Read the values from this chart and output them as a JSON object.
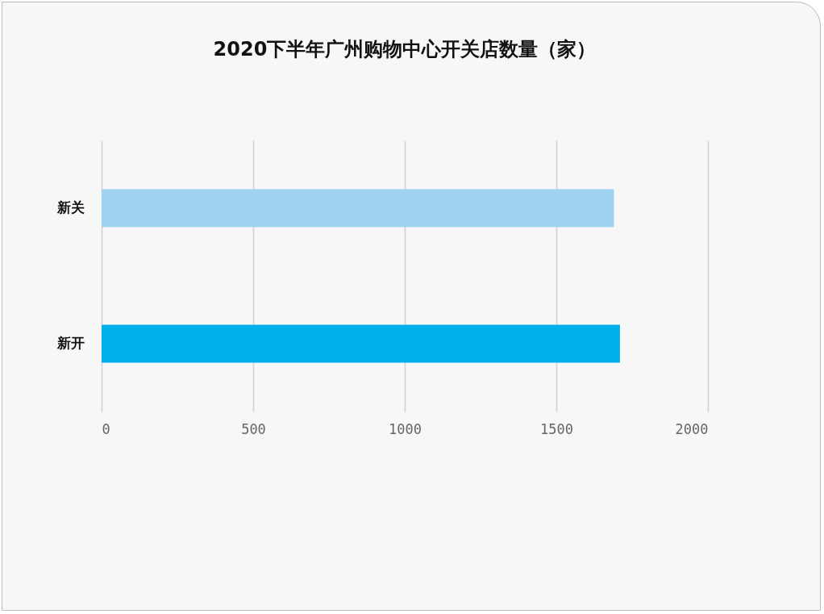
{
  "chart_data": {
    "type": "bar",
    "orientation": "horizontal",
    "title": "2020下半年广州购物中心开关店数量（家）",
    "categories": [
      "新关",
      "新开"
    ],
    "values": [
      1690,
      1710
    ],
    "colors": [
      "#9dd3ee",
      "#00b0ec"
    ],
    "xlim": [
      0,
      2000
    ],
    "xticks": [
      0,
      500,
      1000,
      1500,
      2000
    ],
    "grid": "x",
    "legend": false
  }
}
